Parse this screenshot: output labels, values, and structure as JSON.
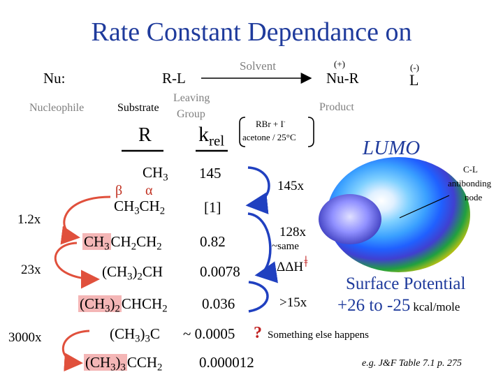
{
  "title": "Rate Constant Dependance on",
  "reaction": {
    "nu": "Nu:",
    "rl": "R-L",
    "solvent": "Solvent",
    "nu_r": "Nu-R",
    "plus": "(+)",
    "minus": "(-)",
    "l": "L",
    "nucleophile": "Nucleophile",
    "substrate": "Substrate",
    "leaving": "Leaving",
    "group": "Group",
    "product": "Product"
  },
  "conditions": {
    "line1": "RBr + I",
    "line1_sup": "-",
    "line2": "acetone / 25°C"
  },
  "columns": {
    "r": "R",
    "k": "k",
    "k_sub": "rel"
  },
  "rows": [
    {
      "label": "CH3",
      "value": "145"
    },
    {
      "label": "CH3CH2",
      "value": "[1]"
    },
    {
      "label": "CH3CH2CH2",
      "value": "0.82"
    },
    {
      "label": "(CH3)2CH",
      "value": "0.0078"
    },
    {
      "label": "(CH3)2CHCH2",
      "value": "0.036"
    },
    {
      "label": "(CH3)3C",
      "value": "~ 0.0005"
    },
    {
      "label": "(CH3)3CCH2",
      "value": "0.000012"
    }
  ],
  "greek": {
    "beta": "β",
    "alpha": "α"
  },
  "left_ratios": {
    "r1": "1.2x",
    "r2": "23x",
    "r3": "3000x"
  },
  "right_ratios": {
    "r1": "145x",
    "r2": "128x",
    "same": "~same",
    "ddh": "ΔΔH",
    "dagger": "ǂ",
    "r3": ">15x"
  },
  "question": "?",
  "something": "Something else happens",
  "lumo": "LUMO",
  "cl_node": {
    "l1": "C-L",
    "l2": "antibonding",
    "l3": "node"
  },
  "surface": {
    "line1": "Surface Potential",
    "range": "+26 to -25",
    "unit": "kcal/mole"
  },
  "reference": "e.g. J&F Table 7.1 p. 275",
  "colors": {
    "title": "#1f3b9c",
    "arrow_red": "#e0503c",
    "brace_blue": "#2040c0",
    "highlight": "#f4b6b6"
  }
}
